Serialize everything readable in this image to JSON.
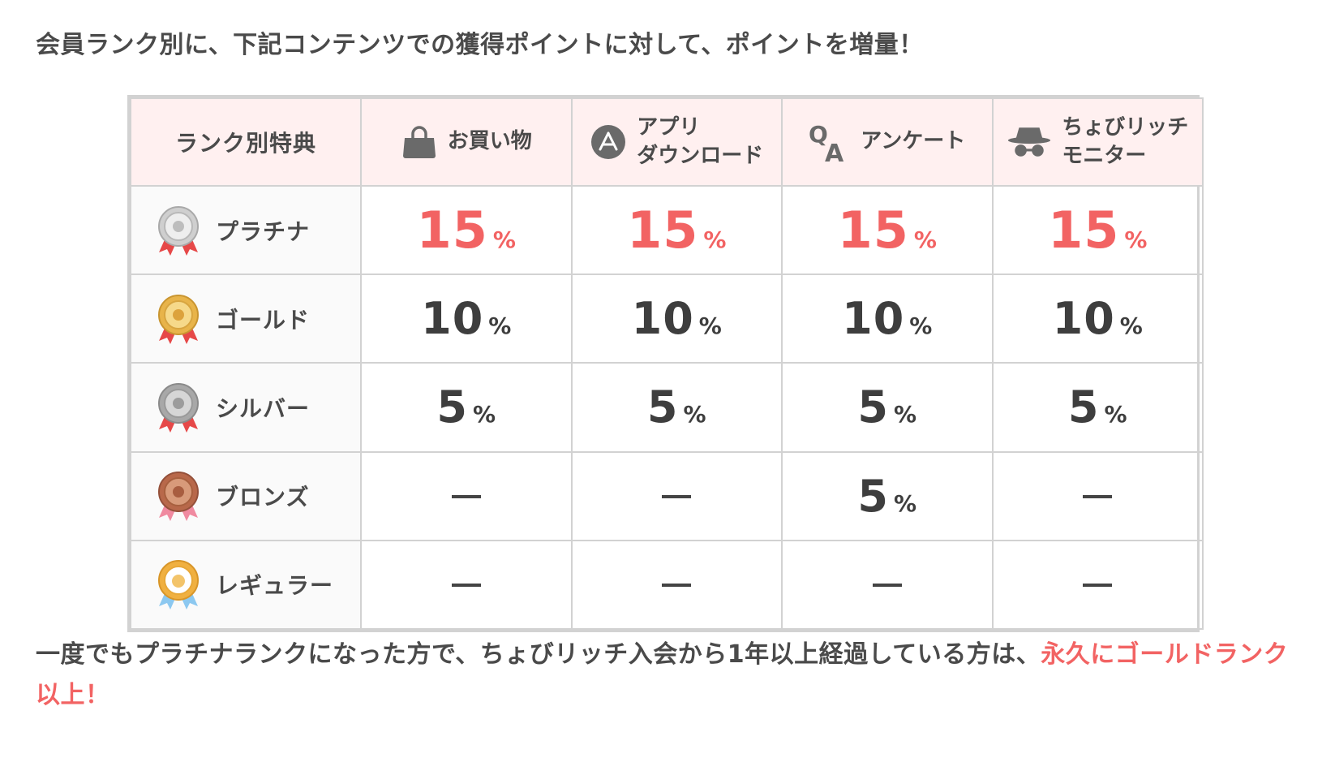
{
  "intro": "会員ランク別に、下記コンテンツでの獲得ポイントに対して、ポイントを増量！",
  "table": {
    "corner_label": "ランク別特典",
    "columns": [
      {
        "icon": "shopping-bag-icon",
        "line1": "お買い物",
        "line2": ""
      },
      {
        "icon": "app-store-icon",
        "line1": "アプリ",
        "line2": "ダウンロード"
      },
      {
        "icon": "qa-icon",
        "line1": "アンケート",
        "line2": ""
      },
      {
        "icon": "spy-hat-glasses-icon",
        "line1": "ちょびリッチ",
        "line2": "モニター"
      }
    ],
    "rows": [
      {
        "rank": "プラチナ",
        "medal": "platinum-medal-icon",
        "values": [
          "15",
          "15",
          "15",
          "15"
        ]
      },
      {
        "rank": "ゴールド",
        "medal": "gold-medal-icon",
        "values": [
          "10",
          "10",
          "10",
          "10"
        ]
      },
      {
        "rank": "シルバー",
        "medal": "silver-medal-icon",
        "values": [
          "5",
          "5",
          "5",
          "5"
        ]
      },
      {
        "rank": "ブロンズ",
        "medal": "bronze-medal-icon",
        "values": [
          "—",
          "—",
          "5",
          "—"
        ]
      },
      {
        "rank": "レギュラー",
        "medal": "regular-medal-icon",
        "values": [
          "—",
          "—",
          "—",
          "—"
        ]
      }
    ],
    "percent_sign": "%"
  },
  "note": {
    "text": "一度でもプラチナランクになった方で、ちょびリッチ入会から1年以上経過している方は、",
    "accent": "永久にゴールドランク以上！"
  },
  "colors": {
    "accent": "#f26363",
    "header_bg": "#fff0f0",
    "border": "#d2d2d2",
    "text": "#4a4a4a"
  }
}
